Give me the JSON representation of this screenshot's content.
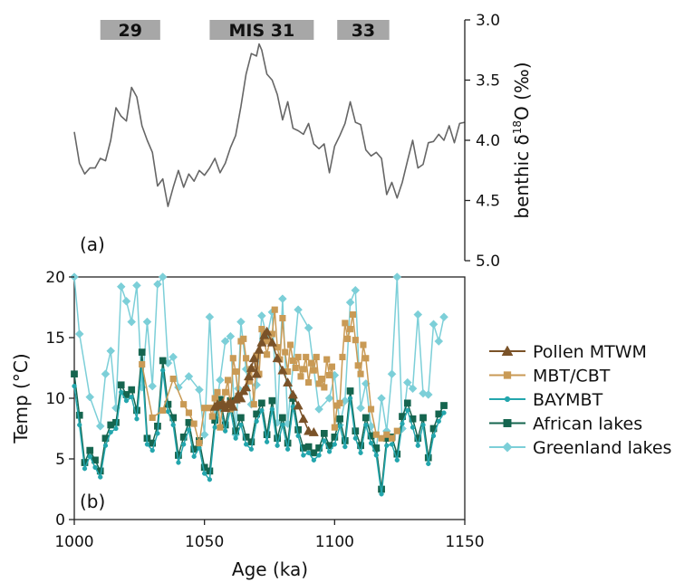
{
  "chart_data": [
    {
      "panel": "(a)",
      "type": "line",
      "ylabel_prefix": "benthic δ",
      "ylabel_sup": "18",
      "ylabel_suffix": "O (‰)",
      "ylim": [
        3.0,
        5.0
      ],
      "y_reversed": true,
      "y_axis_side": "right",
      "yticks": [
        3.0,
        3.5,
        4.0,
        4.5,
        5.0
      ],
      "ytick_labels": [
        "3.0",
        "3.5",
        "4.0",
        "4.5",
        "5.0"
      ],
      "xlim": [
        1000,
        1150
      ],
      "mis_stages": [
        {
          "label": "29",
          "start": 1010,
          "end": 1033
        },
        {
          "label": "MIS 31",
          "start": 1052,
          "end": 1092
        },
        {
          "label": "33",
          "start": 1101,
          "end": 1121
        }
      ],
      "series": [
        {
          "color": "#666666",
          "x": [
            1000,
            1002,
            1004,
            1006,
            1008,
            1010,
            1012,
            1014,
            1016,
            1018,
            1020,
            1022,
            1024,
            1026,
            1028,
            1030,
            1032,
            1034,
            1036,
            1038,
            1040,
            1042,
            1044,
            1046,
            1048,
            1050,
            1052,
            1054,
            1056,
            1058,
            1060,
            1062,
            1064,
            1066,
            1068,
            1070,
            1071,
            1072,
            1074,
            1076,
            1078,
            1080,
            1082,
            1084,
            1086,
            1088,
            1090,
            1092,
            1094,
            1096,
            1098,
            1100,
            1102,
            1104,
            1106,
            1108,
            1110,
            1112,
            1114,
            1116,
            1118,
            1120,
            1122,
            1124,
            1126,
            1128,
            1130,
            1132,
            1134,
            1136,
            1138,
            1140,
            1142,
            1144,
            1146,
            1148,
            1150
          ],
          "values": [
            3.93,
            4.19,
            4.28,
            4.23,
            4.23,
            4.15,
            4.17,
            4.0,
            3.73,
            3.8,
            3.84,
            3.56,
            3.64,
            3.88,
            4.0,
            4.1,
            4.38,
            4.32,
            4.55,
            4.39,
            4.25,
            4.39,
            4.28,
            4.34,
            4.25,
            4.29,
            4.23,
            4.15,
            4.27,
            4.19,
            4.06,
            3.96,
            3.72,
            3.45,
            3.28,
            3.3,
            3.2,
            3.25,
            3.45,
            3.5,
            3.62,
            3.83,
            3.68,
            3.9,
            3.92,
            3.95,
            3.86,
            4.03,
            4.07,
            4.03,
            4.27,
            4.05,
            3.96,
            3.86,
            3.68,
            3.85,
            3.87,
            4.08,
            4.13,
            4.1,
            4.15,
            4.45,
            4.35,
            4.48,
            4.35,
            4.17,
            4.0,
            4.23,
            4.2,
            4.02,
            4.01,
            3.95,
            4.0,
            3.88,
            4.02,
            3.86,
            3.85
          ]
        }
      ]
    },
    {
      "panel": "(b)",
      "type": "line",
      "xlabel": "Age (ka)",
      "ylabel": "Temp (°C)",
      "xlim": [
        1000,
        1150
      ],
      "ylim": [
        0,
        20
      ],
      "xticks": [
        1000,
        1050,
        1100,
        1150
      ],
      "xtick_labels": [
        "1000",
        "1050",
        "1100",
        "1150"
      ],
      "yticks": [
        0,
        5,
        10,
        15,
        20
      ],
      "ytick_labels": [
        "0",
        "5",
        "10",
        "15",
        "20"
      ],
      "legend_position": "right",
      "series": [
        {
          "name": "Greenland lakes",
          "color": "#7ccfd8",
          "marker": "diamond",
          "x": [
            1000,
            1002,
            1006,
            1010,
            1012,
            1014,
            1016,
            1018,
            1020,
            1022,
            1024,
            1026,
            1028,
            1030,
            1032,
            1034,
            1036,
            1038,
            1040,
            1044,
            1048,
            1050,
            1052,
            1054,
            1056,
            1058,
            1060,
            1062,
            1063,
            1064,
            1066,
            1068,
            1070,
            1072,
            1074,
            1076,
            1078,
            1080,
            1082,
            1086,
            1090,
            1094,
            1098,
            1100,
            1102,
            1104,
            1106,
            1108,
            1110,
            1112,
            1114,
            1116,
            1118,
            1120,
            1122,
            1124,
            1126,
            1128,
            1130,
            1132,
            1134,
            1136,
            1138,
            1140,
            1142
          ],
          "values": [
            20.0,
            15.3,
            10.1,
            7.7,
            12.0,
            13.9,
            9.2,
            19.2,
            18.0,
            16.3,
            19.3,
            10.9,
            16.3,
            11.0,
            19.4,
            20.0,
            12.9,
            13.4,
            10.9,
            11.8,
            10.7,
            7.0,
            16.7,
            8.4,
            11.5,
            14.7,
            15.1,
            7.0,
            10.8,
            16.3,
            12.4,
            9.5,
            11.1,
            16.8,
            15.0,
            17.1,
            8.0,
            18.2,
            7.9,
            17.3,
            15.8,
            9.1,
            10.0,
            11.9,
            7.8,
            9.8,
            17.9,
            18.9,
            9.2,
            11.2,
            7.7,
            5.7,
            10.0,
            7.3,
            12.0,
            20.0,
            7.5,
            11.3,
            10.8,
            16.9,
            10.4,
            10.3,
            16.1,
            14.7,
            16.7
          ]
        },
        {
          "name": "African lakes",
          "color": "#15654f",
          "marker": "square",
          "x": [
            1000,
            1002,
            1004,
            1006,
            1008,
            1010,
            1012,
            1014,
            1016,
            1018,
            1020,
            1022,
            1024,
            1026,
            1028,
            1030,
            1032,
            1034,
            1036,
            1038,
            1040,
            1042,
            1044,
            1046,
            1048,
            1050,
            1052,
            1054,
            1056,
            1058,
            1060,
            1062,
            1064,
            1066,
            1068,
            1070,
            1072,
            1074,
            1076,
            1078,
            1080,
            1082,
            1084,
            1086,
            1088,
            1090,
            1092,
            1094,
            1096,
            1098,
            1100,
            1102,
            1104,
            1106,
            1108,
            1110,
            1112,
            1114,
            1116,
            1118,
            1120,
            1122,
            1124,
            1126,
            1128,
            1130,
            1132,
            1134,
            1136,
            1138,
            1140,
            1142
          ],
          "values": [
            12.0,
            8.6,
            4.7,
            5.7,
            4.9,
            4.0,
            6.7,
            7.8,
            8.0,
            11.1,
            10.3,
            10.7,
            9.0,
            13.8,
            6.7,
            6.3,
            7.7,
            13.1,
            9.5,
            8.4,
            5.3,
            6.8,
            8.0,
            5.8,
            6.5,
            4.3,
            4.0,
            8.2,
            9.9,
            7.8,
            9.8,
            7.3,
            8.4,
            6.8,
            6.4,
            8.7,
            9.6,
            7.0,
            9.8,
            6.7,
            8.4,
            6.3,
            10.0,
            7.4,
            5.9,
            6.0,
            5.5,
            5.9,
            7.1,
            6.1,
            6.8,
            8.3,
            6.5,
            10.6,
            7.3,
            6.1,
            8.4,
            6.9,
            5.9,
            2.5,
            6.7,
            6.8,
            5.4,
            8.5,
            9.6,
            8.3,
            6.7,
            8.4,
            5.1,
            7.5,
            8.7,
            9.4
          ]
        },
        {
          "name": "BAYMBT",
          "color": "#23a6ad",
          "marker": "circle",
          "x": [
            1000,
            1002,
            1004,
            1006,
            1008,
            1010,
            1012,
            1014,
            1016,
            1018,
            1020,
            1022,
            1024,
            1026,
            1028,
            1030,
            1032,
            1034,
            1036,
            1038,
            1040,
            1042,
            1044,
            1046,
            1048,
            1050,
            1052,
            1054,
            1056,
            1058,
            1060,
            1062,
            1064,
            1066,
            1068,
            1070,
            1072,
            1074,
            1076,
            1078,
            1080,
            1082,
            1084,
            1086,
            1088,
            1090,
            1092,
            1094,
            1096,
            1098,
            1100,
            1102,
            1104,
            1106,
            1108,
            1110,
            1112,
            1114,
            1116,
            1118,
            1120,
            1122,
            1124,
            1126,
            1128,
            1130,
            1132,
            1134,
            1136,
            1138,
            1140,
            1142
          ],
          "values": [
            11.0,
            7.8,
            4.2,
            5.2,
            4.3,
            3.5,
            6.1,
            7.2,
            7.5,
            10.5,
            9.8,
            10.1,
            8.3,
            12.9,
            6.2,
            5.7,
            7.1,
            12.3,
            8.9,
            7.8,
            4.7,
            6.2,
            7.4,
            5.2,
            5.9,
            3.8,
            3.3,
            7.6,
            9.3,
            7.3,
            9.1,
            6.7,
            7.8,
            6.2,
            5.8,
            8.1,
            9.0,
            6.4,
            9.1,
            6.1,
            7.8,
            5.8,
            9.3,
            6.9,
            5.3,
            5.5,
            4.9,
            5.3,
            6.5,
            5.6,
            6.2,
            7.7,
            6.0,
            10.0,
            6.7,
            5.5,
            7.8,
            6.3,
            5.3,
            2.1,
            6.1,
            6.2,
            4.9,
            7.9,
            9.0,
            7.6,
            6.1,
            7.8,
            4.6,
            6.9,
            8.1,
            8.8
          ]
        },
        {
          "name": "MBT/CBT",
          "color": "#c99a55",
          "marker": "square",
          "x": [
            1026,
            1030,
            1034,
            1038,
            1042,
            1044,
            1046,
            1048,
            1050,
            1052,
            1053,
            1054,
            1055,
            1056,
            1057,
            1058,
            1059,
            1060,
            1061,
            1062,
            1063,
            1064,
            1065,
            1066,
            1067,
            1068,
            1069,
            1070,
            1071,
            1072,
            1073,
            1074,
            1075,
            1076,
            1077,
            1078,
            1079,
            1080,
            1081,
            1082,
            1083,
            1084,
            1085,
            1086,
            1087,
            1088,
            1089,
            1090,
            1091,
            1092,
            1093,
            1094,
            1095,
            1096,
            1097,
            1098,
            1099,
            1100,
            1101,
            1102,
            1103,
            1104,
            1105,
            1106,
            1107,
            1108,
            1109,
            1110,
            1111,
            1112,
            1114,
            1116,
            1118,
            1120,
            1122,
            1124
          ],
          "values": [
            12.8,
            8.4,
            9.0,
            11.6,
            9.5,
            8.8,
            7.9,
            6.3,
            9.2,
            9.2,
            8.5,
            10.0,
            10.5,
            7.6,
            9.5,
            10.5,
            11.5,
            9.1,
            13.3,
            12.2,
            10.2,
            14.7,
            14.9,
            13.3,
            11.4,
            12.4,
            9.5,
            13.5,
            12.0,
            15.7,
            14.7,
            13.6,
            14.7,
            15.3,
            17.3,
            14.2,
            13.2,
            16.6,
            13.8,
            12.2,
            14.4,
            13.1,
            12.5,
            13.4,
            11.8,
            12.4,
            13.4,
            11.3,
            12.9,
            12.3,
            13.4,
            11.2,
            11.6,
            10.9,
            13.2,
            11.9,
            12.6,
            7.6,
            9.4,
            9.6,
            13.4,
            16.2,
            14.9,
            15.7,
            16.9,
            14.8,
            12.7,
            12.0,
            14.4,
            13.3,
            9.1,
            7.0,
            6.7,
            7.0,
            6.7,
            7.3
          ]
        },
        {
          "name": "Pollen MTWM",
          "color": "#7a5228",
          "marker": "triangle",
          "x": [
            1054,
            1055,
            1056,
            1057,
            1058,
            1059,
            1060,
            1061,
            1062,
            1063,
            1064,
            1065,
            1066,
            1067,
            1068,
            1069,
            1070,
            1071,
            1072,
            1073,
            1074,
            1076,
            1078,
            1080,
            1082,
            1084,
            1086,
            1088,
            1090,
            1092
          ],
          "values": [
            9.3,
            9.5,
            9.4,
            9.6,
            9.2,
            9.5,
            9.7,
            9.3,
            9.9,
            10.3,
            10.0,
            10.6,
            10.9,
            11.8,
            12.5,
            13.3,
            12.0,
            14.0,
            14.6,
            15.2,
            15.5,
            14.6,
            13.3,
            12.3,
            11.3,
            10.3,
            9.4,
            8.3,
            7.3,
            7.2
          ]
        }
      ],
      "legend_order": [
        "Pollen MTWM",
        "MBT/CBT",
        "BAYMBT",
        "African lakes",
        "Greenland lakes"
      ]
    }
  ]
}
